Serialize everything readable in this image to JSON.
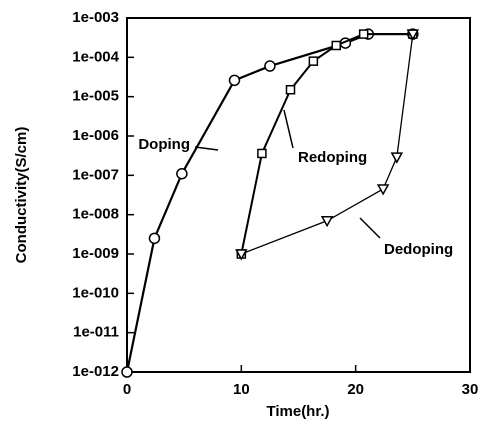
{
  "chart_data": {
    "type": "line",
    "x_label": "Time(hr.)",
    "y_label": "Conductivity(S/cm)",
    "xlim": [
      0,
      30
    ],
    "xticks": [
      0,
      10,
      20,
      30
    ],
    "ylim": [
      1e-12,
      0.001
    ],
    "log_y": true,
    "yticks": [
      {
        "value": 1e-12,
        "label": "1e-012"
      },
      {
        "value": 1e-11,
        "label": "1e-011"
      },
      {
        "value": 1e-10,
        "label": "1e-010"
      },
      {
        "value": 1e-09,
        "label": "1e-009"
      },
      {
        "value": 1e-08,
        "label": "1e-008"
      },
      {
        "value": 1e-07,
        "label": "1e-007"
      },
      {
        "value": 1e-06,
        "label": "1e-006"
      },
      {
        "value": 1e-05,
        "label": "1e-005"
      },
      {
        "value": 0.0001,
        "label": "1e-004"
      },
      {
        "value": 0.001,
        "label": "1e-003"
      }
    ],
    "series": [
      {
        "name": "Doping",
        "color": "#000000",
        "marker": "circle",
        "x": [
          0,
          2.4,
          4.8,
          9.4,
          12.5,
          19.1,
          21.1,
          25
        ],
        "values": [
          1e-12,
          2.5e-09,
          1.1e-07,
          2.6e-05,
          6e-05,
          0.00023,
          0.00039,
          0.00039
        ]
      },
      {
        "name": "Redoping",
        "color": "#000000",
        "marker": "square",
        "x": [
          10,
          11.8,
          14.3,
          16.3,
          18.3,
          20.7,
          25
        ],
        "values": [
          1e-09,
          3.6e-07,
          1.5e-05,
          8e-05,
          0.0002,
          0.00039,
          0.00039
        ]
      },
      {
        "name": "Dedoping",
        "color": "#000000",
        "marker": "triangle",
        "x": [
          25,
          23.6,
          22.4,
          17.5,
          10
        ],
        "values": [
          0.00039,
          2.9e-07,
          4.5e-08,
          7e-09,
          1e-09
        ]
      }
    ]
  }
}
